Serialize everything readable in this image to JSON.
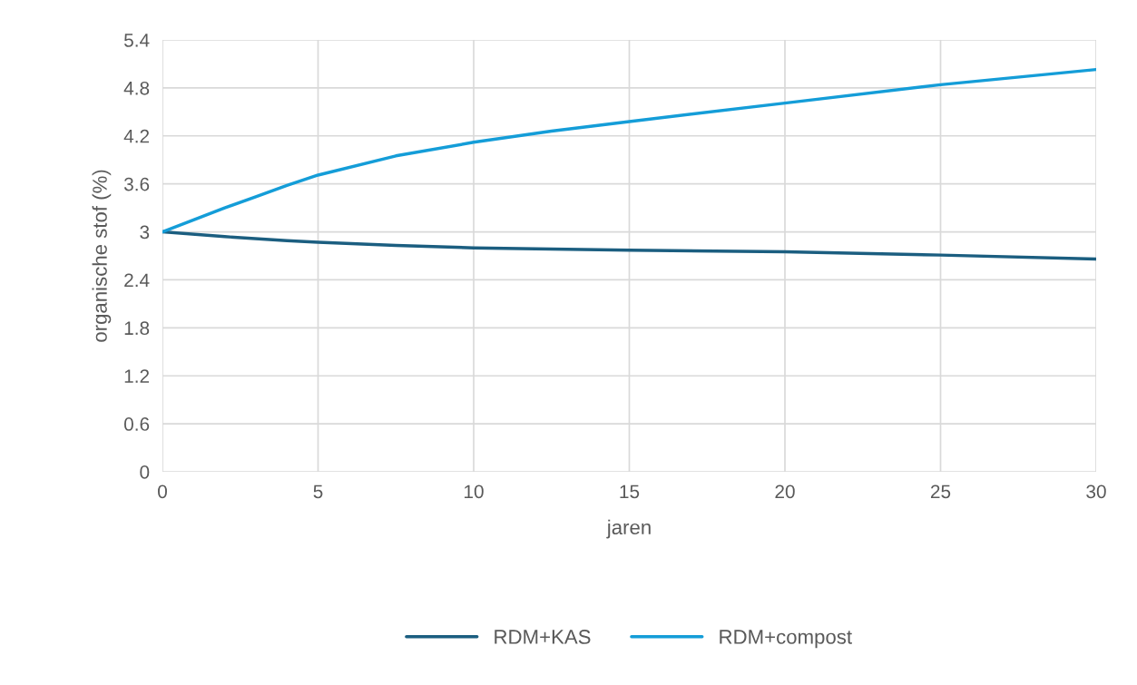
{
  "chart_data": {
    "type": "line",
    "xlabel": "jaren",
    "ylabel": "organische stof (%)",
    "xlim": [
      0,
      30
    ],
    "xticks": [
      0,
      5,
      10,
      15,
      20,
      25,
      30
    ],
    "ylim": [
      0,
      5.4
    ],
    "yticks": [
      0,
      0.6,
      1.2,
      1.8,
      2.4,
      3,
      3.6,
      4.2,
      4.8,
      5.4
    ],
    "grid": true,
    "legend": "bottom",
    "marker": "none",
    "line_style": "solid",
    "series": [
      {
        "name": "RDM+KAS",
        "color": "#1b5e80",
        "x": [
          0,
          2,
          4,
          5,
          7.5,
          10,
          15,
          20,
          25,
          30
        ],
        "values": [
          3.0,
          2.94,
          2.89,
          2.87,
          2.83,
          2.8,
          2.77,
          2.75,
          2.71,
          2.66
        ]
      },
      {
        "name": "RDM+compost",
        "color": "#149dd8",
        "x": [
          0,
          1,
          2,
          3,
          4,
          5,
          7.5,
          10,
          12.5,
          15,
          20,
          25,
          30
        ],
        "values": [
          3.0,
          3.15,
          3.3,
          3.44,
          3.58,
          3.71,
          3.95,
          4.12,
          4.26,
          4.38,
          4.61,
          4.84,
          5.03
        ]
      }
    ]
  }
}
